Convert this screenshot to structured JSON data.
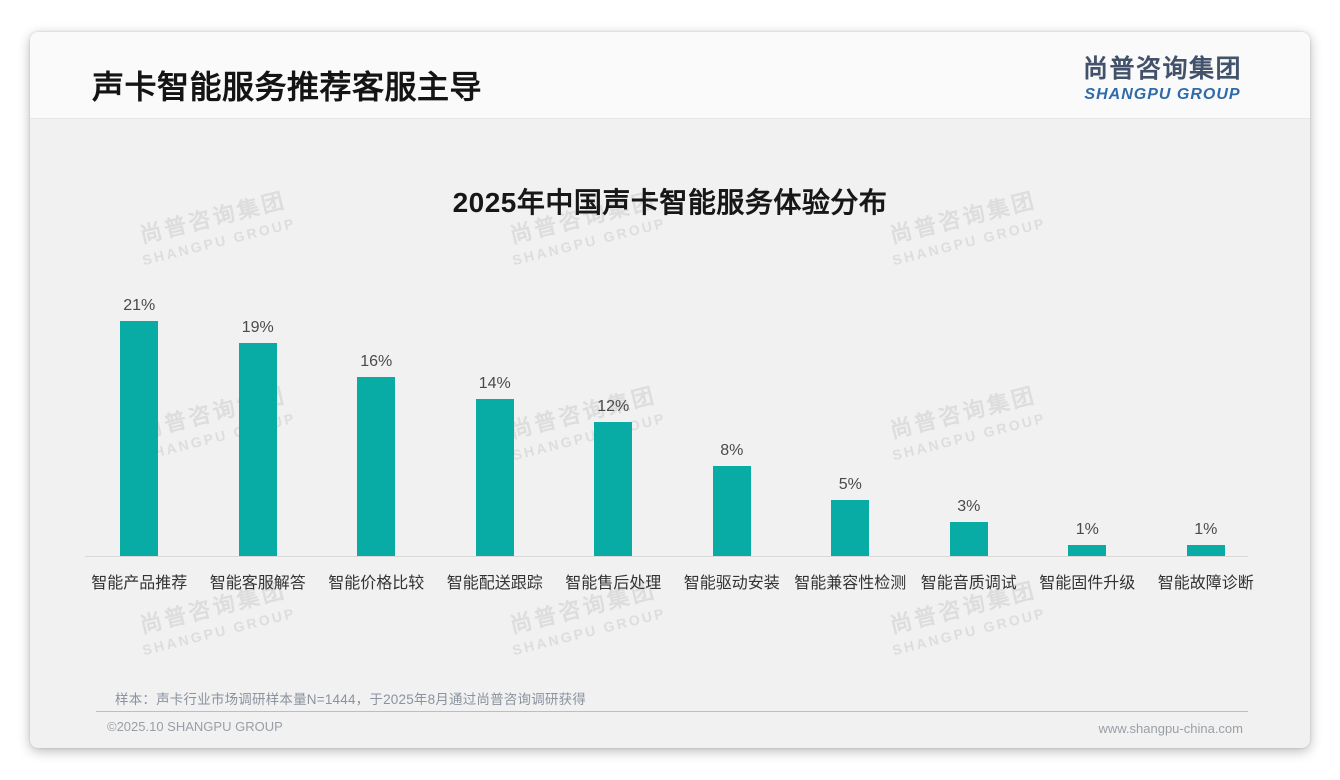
{
  "page": {
    "header_title": "声卡智能服务推荐客服主导",
    "logo": {
      "cn": "尚普咨询集团",
      "en": "SHANGPU GROUP"
    },
    "watermark": {
      "line1": "尚普咨询集团",
      "line2": "SHANGPU GROUP"
    },
    "footnote": "样本：声卡行业市场调研样本量N=1444，于2025年8月通过尚普咨询调研获得",
    "copyright": "©2025.10 SHANGPU GROUP",
    "website": "www.shangpu-china.com"
  },
  "chart_data": {
    "type": "bar",
    "title": "2025年中国声卡智能服务体验分布",
    "categories": [
      "智能产品推荐",
      "智能客服解答",
      "智能价格比较",
      "智能配送跟踪",
      "智能售后处理",
      "智能驱动安装",
      "智能兼容性检测",
      "智能音质调试",
      "智能固件升级",
      "智能故障诊断"
    ],
    "values": [
      21,
      19,
      16,
      14,
      12,
      8,
      5,
      3,
      1,
      1
    ],
    "unit": "%",
    "xlabel": "",
    "ylabel": "",
    "ylim": [
      0,
      22
    ],
    "grid": false,
    "data_labels": true,
    "legend": "none",
    "bar_color": "#09ACA4"
  },
  "colors": {
    "bar": "#09ACA4",
    "logo_cn": "#42526B",
    "logo_en": "#2E6BA8",
    "slide_bg": "#F1F1F2",
    "header_bg": "#FAFAFA"
  }
}
